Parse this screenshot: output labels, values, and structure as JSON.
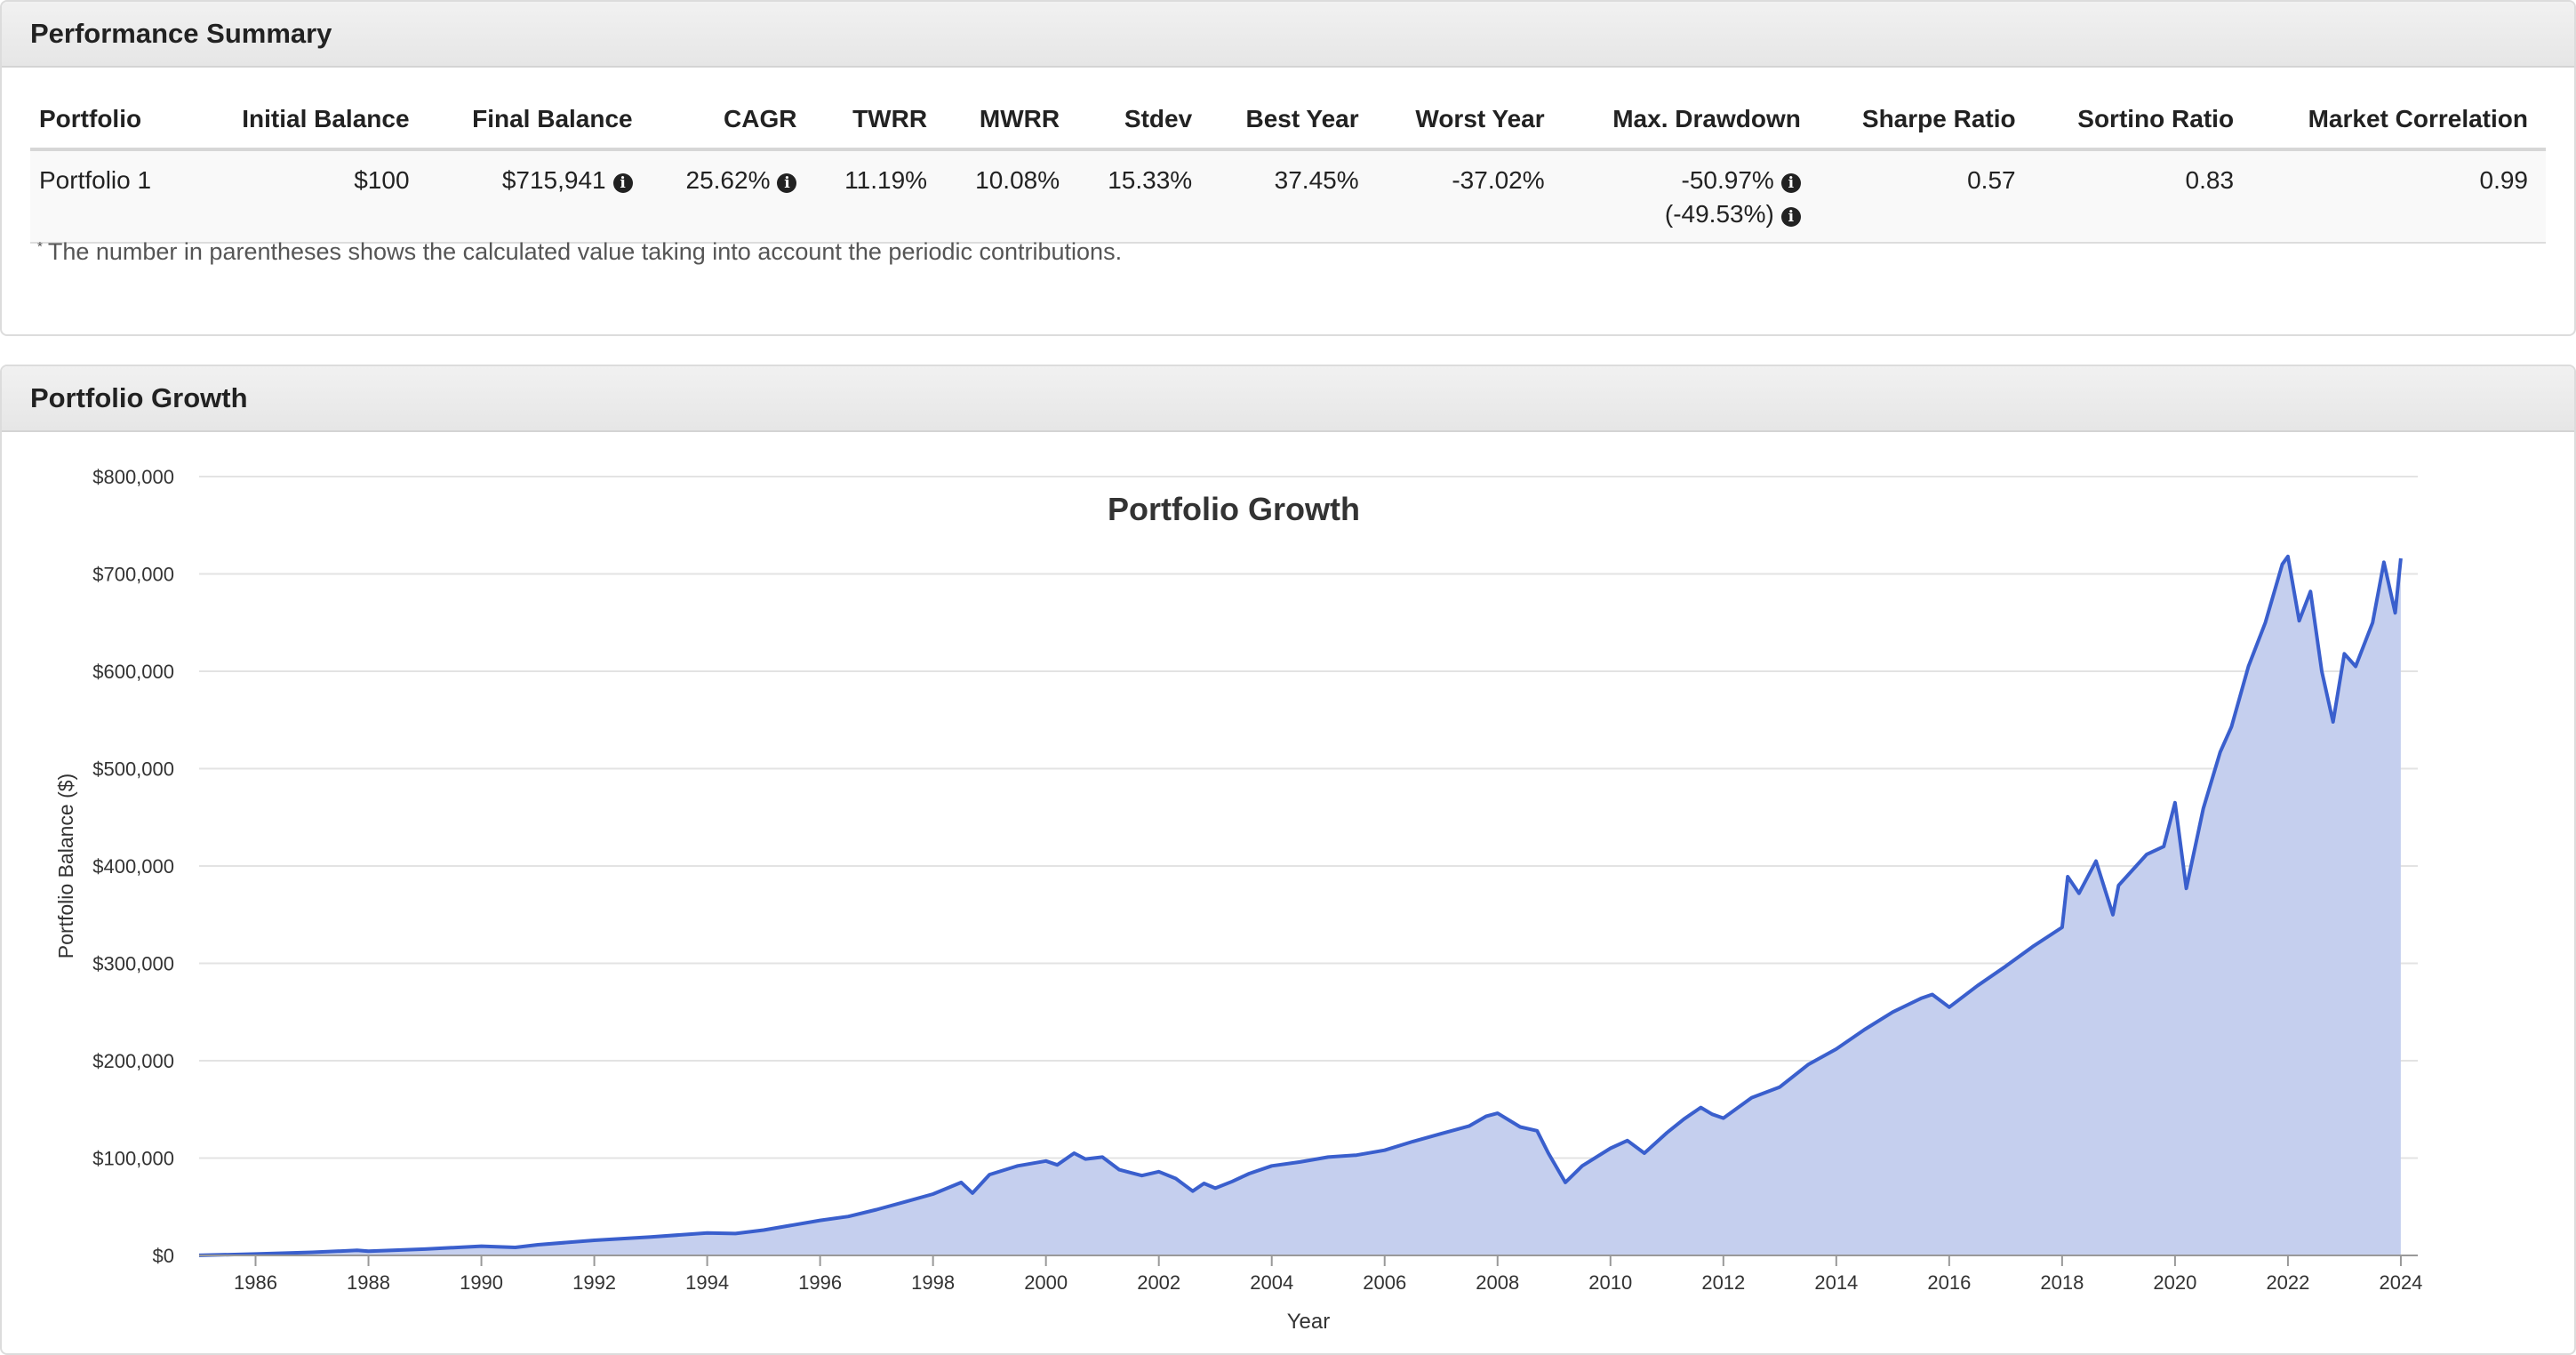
{
  "summary": {
    "title": "Performance Summary",
    "columns": [
      "Portfolio",
      "Initial Balance",
      "Final Balance",
      "CAGR",
      "TWRR",
      "MWRR",
      "Stdev",
      "Best Year",
      "Worst Year",
      "Max. Drawdown",
      "Sharpe Ratio",
      "Sortino Ratio",
      "Market Correlation"
    ],
    "row": {
      "portfolio": "Portfolio 1",
      "initial_balance": "$100",
      "final_balance": "$715,941",
      "cagr": "25.62%",
      "twrr": "11.19%",
      "mwrr": "10.08%",
      "stdev": "15.33%",
      "best_year": "37.45%",
      "worst_year": "-37.02%",
      "max_drawdown": "-50.97%",
      "max_drawdown_contrib": "(-49.53%)",
      "sharpe": "0.57",
      "sortino": "0.83",
      "market_correlation": "0.99"
    },
    "footnote_mark": "*",
    "footnote": "The number in parentheses shows the calculated value taking into account the periodic contributions.",
    "info_icon": "info-circle-icon"
  },
  "growth_panel": {
    "title": "Portfolio Growth"
  },
  "chart_data": {
    "type": "area",
    "title": "Portfolio Growth",
    "xlabel": "Year",
    "ylabel": "Portfolio Balance ($)",
    "xlim": [
      1985,
      2024.3
    ],
    "ylim": [
      0,
      800000
    ],
    "x_ticks": [
      1986,
      1988,
      1990,
      1992,
      1994,
      1996,
      1998,
      2000,
      2002,
      2004,
      2006,
      2008,
      2010,
      2012,
      2014,
      2016,
      2018,
      2020,
      2022,
      2024
    ],
    "y_ticks": [
      0,
      100000,
      200000,
      300000,
      400000,
      500000,
      600000,
      700000,
      800000
    ],
    "y_tick_labels": [
      "$0",
      "$100,000",
      "$200,000",
      "$300,000",
      "$400,000",
      "$500,000",
      "$600,000",
      "$700,000",
      "$800,000"
    ],
    "grid": true,
    "line_color": "#3a5fcd",
    "fill_color": "#c5cfee",
    "series": [
      {
        "x": [
          1985.0,
          1986.0,
          1987.0,
          1987.8,
          1988.0,
          1989.0,
          1990.0,
          1990.6,
          1991.0,
          1992.0,
          1993.0,
          1994.0,
          1994.5,
          1995.0,
          1996.0,
          1996.5,
          1997.0,
          1997.5,
          1998.0,
          1998.5,
          1998.7,
          1999.0,
          1999.5,
          2000.0,
          2000.2,
          2000.5,
          2000.7,
          2001.0,
          2001.3,
          2001.7,
          2002.0,
          2002.3,
          2002.6,
          2002.8,
          2003.0,
          2003.3,
          2003.6,
          2004.0,
          2004.5,
          2005.0,
          2005.5,
          2006.0,
          2006.5,
          2007.0,
          2007.5,
          2007.8,
          2008.0,
          2008.4,
          2008.7,
          2008.9,
          2009.2,
          2009.5,
          2010.0,
          2010.3,
          2010.6,
          2011.0,
          2011.3,
          2011.6,
          2011.8,
          2012.0,
          2012.5,
          2013.0,
          2013.5,
          2014.0,
          2014.5,
          2015.0,
          2015.5,
          2015.7,
          2016.0,
          2016.5,
          2017.0,
          2017.5,
          2018.0,
          2018.1,
          2018.3,
          2018.6,
          2018.9,
          2019.0,
          2019.5,
          2019.8,
          2020.0,
          2020.2,
          2020.5,
          2020.8,
          2021.0,
          2021.3,
          2021.6,
          2021.9,
          2022.0,
          2022.2,
          2022.4,
          2022.6,
          2022.8,
          2023.0,
          2023.2,
          2023.5,
          2023.7,
          2023.9,
          2024.0
        ],
        "y": [
          100,
          1500,
          3200,
          5200,
          4300,
          6500,
          9500,
          8200,
          11000,
          15500,
          19000,
          23000,
          22500,
          26000,
          36000,
          40000,
          47000,
          55000,
          63000,
          75000,
          64000,
          83000,
          92000,
          97000,
          93000,
          105000,
          99000,
          101000,
          88000,
          82000,
          86000,
          79000,
          66000,
          74000,
          69000,
          76000,
          84000,
          92000,
          96000,
          101000,
          103000,
          108000,
          117000,
          125000,
          133000,
          143000,
          146000,
          132000,
          128000,
          105000,
          75000,
          92000,
          110000,
          118000,
          105000,
          126000,
          140000,
          152000,
          145000,
          141000,
          162000,
          173000,
          196000,
          212000,
          232000,
          250000,
          264000,
          268000,
          255000,
          277000,
          297000,
          318000,
          337000,
          389000,
          372000,
          405000,
          350000,
          380000,
          412000,
          420000,
          465000,
          377000,
          459000,
          517000,
          543000,
          605000,
          650000,
          710000,
          718000,
          652000,
          682000,
          600000,
          548000,
          618000,
          605000,
          650000,
          712000,
          660000,
          715941
        ]
      }
    ]
  }
}
